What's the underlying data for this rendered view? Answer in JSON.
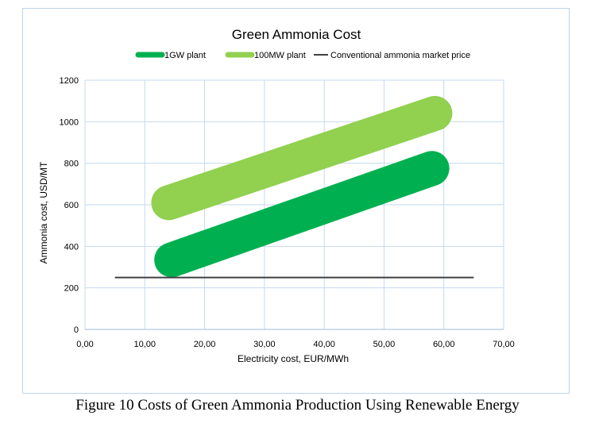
{
  "caption": "Figure 10 Costs of Green Ammonia Production Using Renewable Energy",
  "chart_data": {
    "type": "line",
    "title": "Green Ammonia Cost",
    "xlabel": "Electricity cost, EUR/MWh",
    "ylabel": "Ammonia cost, USD/MT",
    "xlim": [
      0,
      70
    ],
    "ylim": [
      0,
      1200
    ],
    "x_ticks": [
      0,
      10,
      20,
      30,
      40,
      50,
      60,
      70
    ],
    "x_tick_labels": [
      "0,00",
      "10,00",
      "20,00",
      "30,00",
      "40,00",
      "50,00",
      "60,00",
      "70,00"
    ],
    "y_ticks": [
      0,
      200,
      400,
      600,
      800,
      1000,
      1200
    ],
    "y_tick_labels": [
      "0",
      "200",
      "400",
      "600",
      "800",
      "1000",
      "1200"
    ],
    "grid": true,
    "legend_position": "top",
    "series": [
      {
        "name": "1GW plant",
        "color": "#00b050",
        "style": "thick-band",
        "x": [
          14.5,
          58
        ],
        "y": [
          335,
          775
        ]
      },
      {
        "name": "100MW plant",
        "color": "#92d050",
        "style": "thick-band",
        "x": [
          14,
          58.5
        ],
        "y": [
          610,
          1040
        ]
      },
      {
        "name": "Conventional ammonia market price",
        "color": "#404040",
        "style": "line",
        "x": [
          5,
          65
        ],
        "y": [
          250,
          250
        ]
      }
    ]
  }
}
